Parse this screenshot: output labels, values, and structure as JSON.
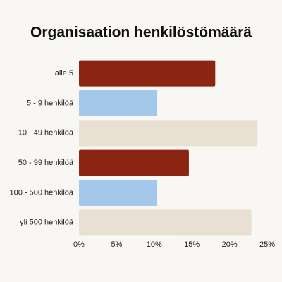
{
  "chart_data": {
    "type": "hbar",
    "title": "Organisaation henkilöstömäärä",
    "categories": [
      "alle 5",
      "5 - 9 henkilöä",
      "10 - 49 henkilöä",
      "50 - 99 henkilöä",
      "100 - 500 henkilöä",
      "yli 500 henkilöä"
    ],
    "values": [
      18.1,
      10.4,
      23.7,
      14.6,
      10.4,
      22.9
    ],
    "colors": [
      "#8b2512",
      "#a3c8ea",
      "#e8e0d3",
      "#8b2512",
      "#a3c8ea",
      "#e8e0d3"
    ],
    "xlim": [
      0,
      25
    ],
    "xticks": [
      {
        "value": 0,
        "label": "0%"
      },
      {
        "value": 5,
        "label": "5%"
      },
      {
        "value": 10,
        "label": "10%"
      },
      {
        "value": 15,
        "label": "15%"
      },
      {
        "value": 20,
        "label": "20%"
      },
      {
        "value": 25,
        "label": "25%"
      }
    ],
    "grid": false
  }
}
